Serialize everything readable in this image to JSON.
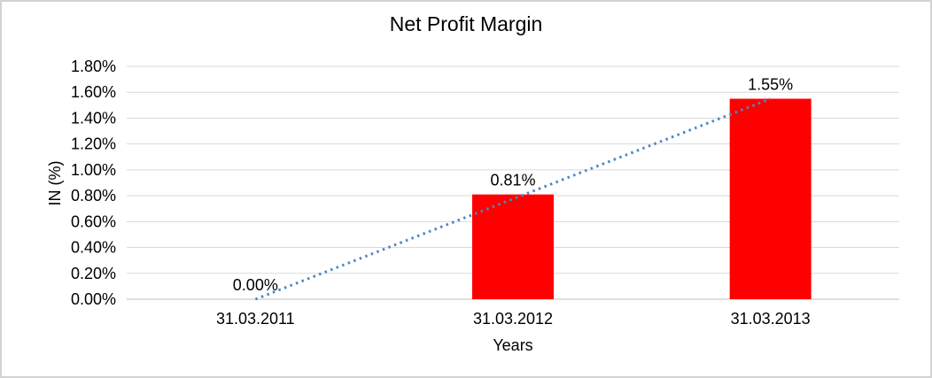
{
  "chart_data": {
    "type": "bar",
    "title": "Net Profit Margin",
    "xlabel": "Years",
    "ylabel": "IN (%)",
    "categories": [
      "31.03.2011",
      "31.03.2012",
      "31.03.2013"
    ],
    "values": [
      0.0,
      0.81,
      1.55
    ],
    "data_labels": [
      "0.00%",
      "0.81%",
      "1.55%"
    ],
    "unit": "%",
    "ylim": [
      0,
      1.8
    ],
    "ytick_step": 0.2,
    "ytick_labels": [
      "0.00%",
      "0.20%",
      "0.40%",
      "0.60%",
      "0.80%",
      "1.00%",
      "1.20%",
      "1.40%",
      "1.60%",
      "1.80%"
    ],
    "grid": true,
    "legend": "none",
    "colors": {
      "bar": "#ff0000",
      "trendline": "#4f86c5",
      "gridline": "#d9d9d9",
      "axis_line": "#bfbfbf",
      "text": "#000000"
    },
    "trendline": {
      "type": "linear",
      "style": "dotted",
      "from_category": "31.03.2011",
      "to_category": "31.03.2013"
    }
  }
}
